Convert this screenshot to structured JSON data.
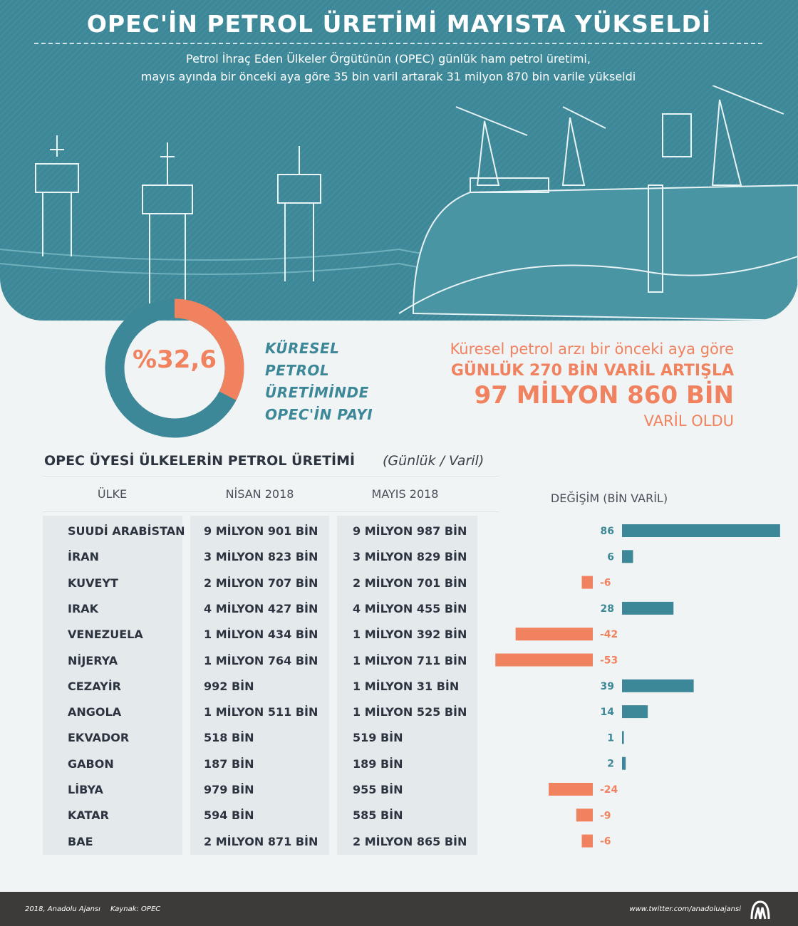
{
  "header": {
    "title": "OPEC'İN PETROL ÜRETİMİ MAYISTA YÜKSELDİ",
    "subtitle_line1": "Petrol İhraç Eden Ülkeler Örgütünün (OPEC) günlük ham petrol üretimi,",
    "subtitle_line2": "mayıs ayında bir önceki aya göre 35 bin varil artarak 31 milyon 870 bin varile yükseldi"
  },
  "share": {
    "value_text": "%32,6",
    "value": 32.6,
    "label_lines": [
      "KÜRESEL",
      "PETROL",
      "ÜRETİMİNDE",
      "OPEC'İN PAYI"
    ]
  },
  "supply": {
    "line1": "Küresel petrol arzı bir önceki aya göre",
    "line2": "GÜNLÜK 270 BİN VARİL ARTIŞLA",
    "line3": "97 MİLYON 860 BİN",
    "line4": "VARİL OLDU"
  },
  "colors": {
    "teal": "#3d8898",
    "orange": "#f0825f"
  },
  "table": {
    "title": "OPEC ÜYESİ ÜLKELERİN PETROL ÜRETİMİ",
    "unit": "(Günlük / Varil)",
    "headers": [
      "ÜLKE",
      "NİSAN 2018",
      "MAYIS 2018",
      "DEĞİŞİM (BİN VARİL)"
    ],
    "rows": [
      [
        "SUUDİ ARABİSTAN",
        "9 MİLYON 901 BİN",
        "9 MİLYON 987 BİN"
      ],
      [
        "İRAN",
        "3 MİLYON 823 BİN",
        "3 MİLYON 829 BİN"
      ],
      [
        "KUVEYT",
        "2 MİLYON 707 BİN",
        "2 MİLYON 701 BİN"
      ],
      [
        "IRAK",
        "4 MİLYON 427 BİN",
        "4 MİLYON 455 BİN"
      ],
      [
        "VENEZUELA",
        "1 MİLYON 434 BİN",
        "1 MİLYON 392 BİN"
      ],
      [
        "NİJERYA",
        "1 MİLYON 764 BİN",
        "1 MİLYON 711 BİN"
      ],
      [
        "CEZAYİR",
        "992 BİN",
        "1 MİLYON 31 BİN"
      ],
      [
        "ANGOLA",
        "1 MİLYON 511 BİN",
        "1 MİLYON 525 BİN"
      ],
      [
        "EKVADOR",
        "518 BİN",
        "519 BİN"
      ],
      [
        "GABON",
        "187 BİN",
        "189 BİN"
      ],
      [
        "LİBYA",
        "979 BİN",
        "955 BİN"
      ],
      [
        "KATAR",
        "594 BİN",
        "585 BİN"
      ],
      [
        "BAE",
        "2 MİLYON 871 BİN",
        "2 MİLYON 865 BİN"
      ]
    ]
  },
  "chart_data": {
    "type": "bar",
    "title": "DEĞİŞİM (BİN VARİL)",
    "categories": [
      "SUUDİ ARABİSTAN",
      "İRAN",
      "KUVEYT",
      "IRAK",
      "VENEZUELA",
      "NİJERYA",
      "CEZAYİR",
      "ANGOLA",
      "EKVADOR",
      "GABON",
      "LİBYA",
      "KATAR",
      "BAE"
    ],
    "values": [
      86,
      6,
      -6,
      28,
      -42,
      -53,
      39,
      14,
      1,
      2,
      -24,
      -9,
      -6
    ],
    "orientation": "horizontal"
  },
  "footer": {
    "credit": "2018, Anadolu Ajansı",
    "source": "Kaynak: OPEC",
    "twitter": "www.twitter.com/anadoluajansi",
    "logo_text": "AA"
  }
}
